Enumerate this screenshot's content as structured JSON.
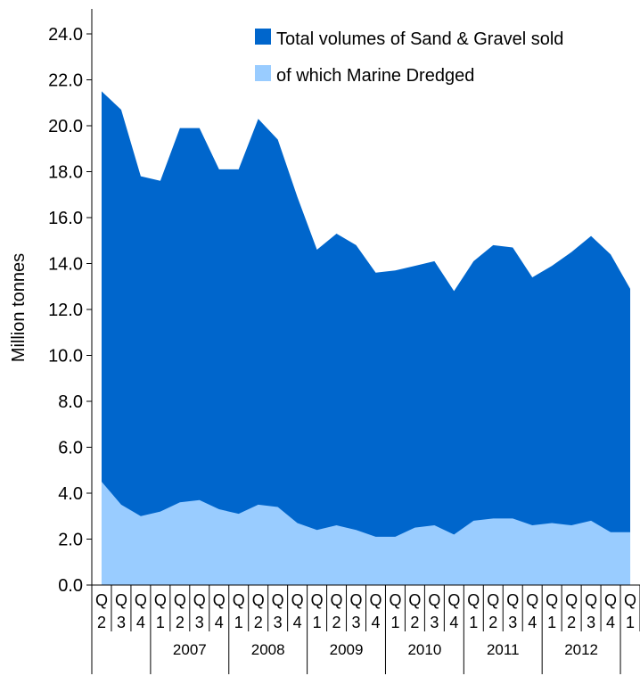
{
  "chart_data": {
    "type": "area",
    "title": "",
    "xlabel": "",
    "ylabel": "Million tonnes",
    "ylim": [
      0,
      24
    ],
    "yticks": [
      "0.0",
      "2.0",
      "4.0",
      "6.0",
      "8.0",
      "10.0",
      "12.0",
      "14.0",
      "16.0",
      "18.0",
      "20.0",
      "22.0",
      "24.0"
    ],
    "grid": false,
    "legend_position": "top-right",
    "quarters": [
      "2",
      "3",
      "4",
      "1",
      "2",
      "3",
      "4",
      "1",
      "2",
      "3",
      "4",
      "1",
      "2",
      "3",
      "4",
      "1",
      "2",
      "3",
      "4",
      "1",
      "2",
      "3",
      "4",
      "1",
      "2",
      "3",
      "4",
      "1"
    ],
    "quarter_prefix": "Q",
    "years": [
      {
        "label": "2007",
        "start": 3,
        "end": 6
      },
      {
        "label": "2008",
        "start": 7,
        "end": 10
      },
      {
        "label": "2009",
        "start": 11,
        "end": 14
      },
      {
        "label": "2010",
        "start": 15,
        "end": 18
      },
      {
        "label": "2011",
        "start": 19,
        "end": 22
      },
      {
        "label": "2012",
        "start": 23,
        "end": 26
      }
    ],
    "series": [
      {
        "name": "Total volumes of Sand & Gravel sold",
        "color": "#0066cc",
        "values": [
          21.5,
          20.7,
          17.8,
          17.6,
          19.9,
          19.9,
          18.1,
          18.1,
          20.3,
          19.4,
          16.9,
          14.6,
          15.3,
          14.8,
          13.6,
          13.7,
          13.9,
          14.1,
          12.8,
          14.1,
          14.8,
          14.7,
          13.4,
          13.9,
          14.5,
          15.2,
          14.4,
          12.9
        ]
      },
      {
        "name": "of which Marine Dredged",
        "color": "#99ccff",
        "values": [
          4.5,
          3.5,
          3.0,
          3.2,
          3.6,
          3.7,
          3.3,
          3.1,
          3.5,
          3.4,
          2.7,
          2.4,
          2.6,
          2.4,
          2.1,
          2.1,
          2.5,
          2.6,
          2.2,
          2.8,
          2.9,
          2.9,
          2.6,
          2.7,
          2.6,
          2.8,
          2.3,
          2.3
        ]
      }
    ]
  }
}
